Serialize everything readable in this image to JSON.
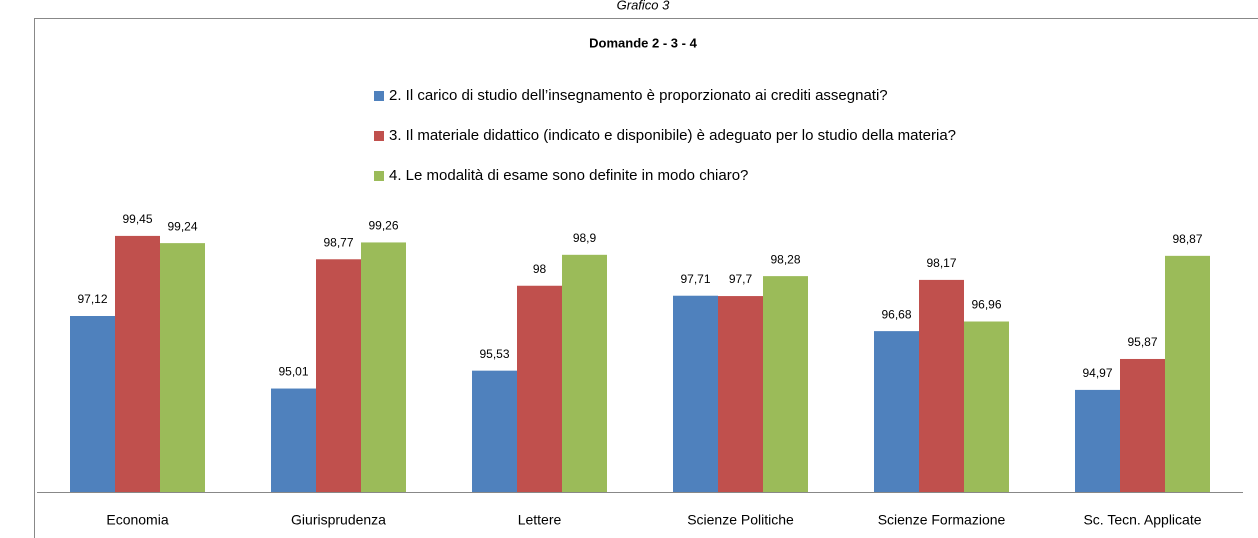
{
  "chart_data": {
    "type": "bar",
    "caption": "Grafico 3",
    "title": "Domande 2 - 3 - 4",
    "categories": [
      "Economia",
      "Giurisprudenza",
      "Lettere",
      "Scienze Politiche",
      "Scienze Formazione",
      "Sc. Tecn. Applicate"
    ],
    "series": [
      {
        "name": "2.  Il carico di studio dell’insegnamento è proporzionato ai crediti assegnati?",
        "color": "#4f81bd",
        "values": [
          97.12,
          95.01,
          95.53,
          97.71,
          96.68,
          94.97
        ],
        "value_labels": [
          "97,12",
          "95,01",
          "95,53",
          "97,71",
          "96,68",
          "94,97"
        ]
      },
      {
        "name": "3. Il materiale didattico (indicato e disponibile) è adeguato per lo studio della materia?",
        "color": "#c0504d",
        "values": [
          99.45,
          98.77,
          98,
          97.7,
          98.17,
          95.87
        ],
        "value_labels": [
          "99,45",
          "98,77",
          "98",
          "97,7",
          "98,17",
          "95,87"
        ]
      },
      {
        "name": "4. Le modalità di esame sono definite in modo chiaro?",
        "color": "#9bbb59",
        "values": [
          99.24,
          99.26,
          98.9,
          98.28,
          96.96,
          98.87
        ],
        "value_labels": [
          "99,24",
          "99,26",
          "98,9",
          "98,28",
          "96,96",
          "98,87"
        ]
      }
    ],
    "ylim": [
      92,
      100
    ]
  }
}
